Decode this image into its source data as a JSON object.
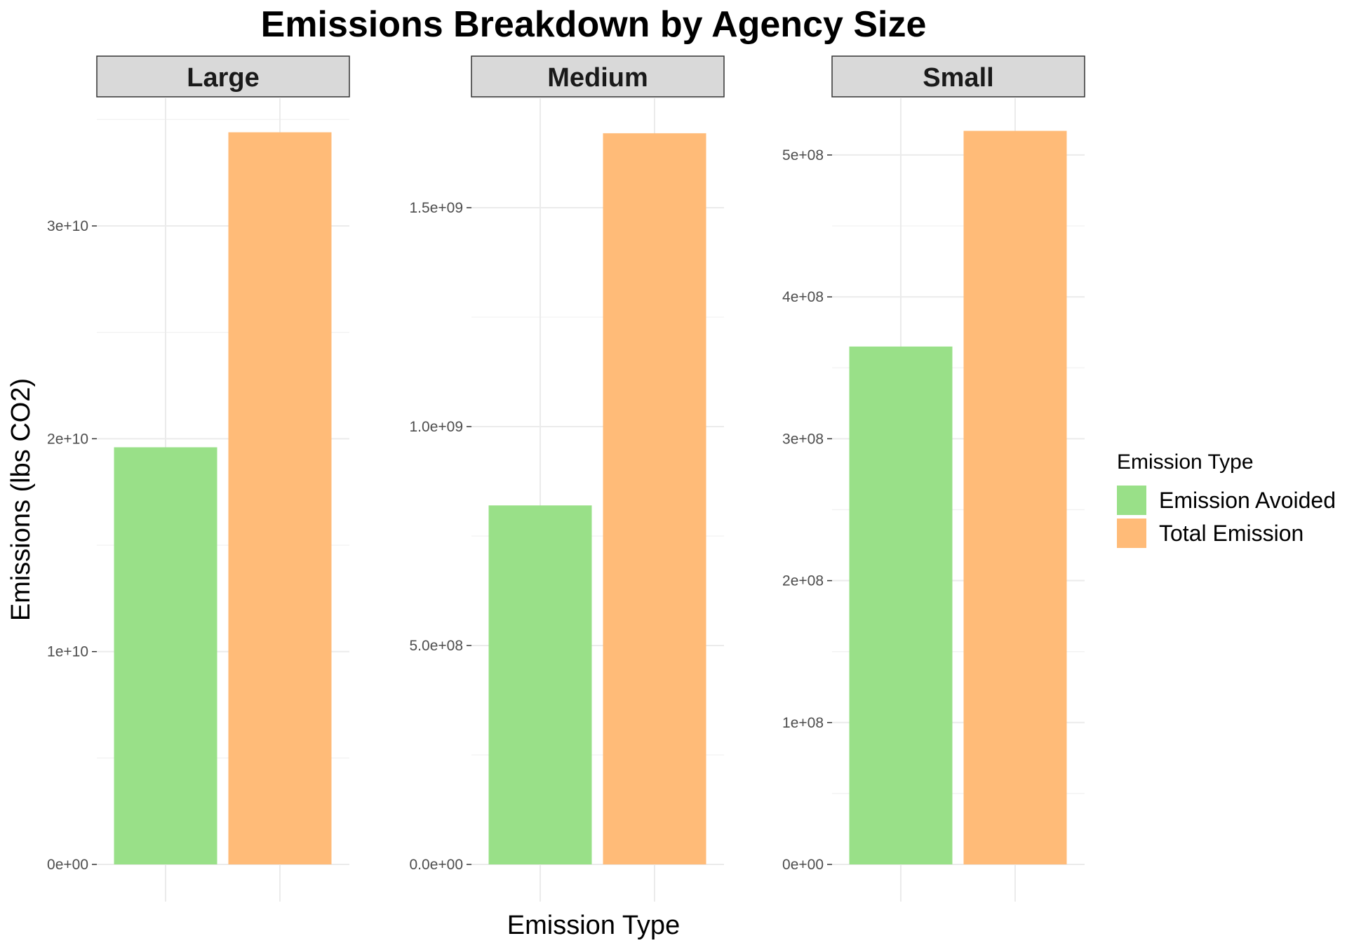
{
  "chart_data": {
    "type": "bar",
    "title": "Emissions Breakdown by Agency Size",
    "xlabel": "Emission Type",
    "ylabel": "Emissions (lbs CO2)",
    "legend": {
      "title": "Emission Type",
      "placement": "right",
      "entries": [
        {
          "name": "Emission Avoided",
          "color": "#99e088"
        },
        {
          "name": "Total Emission",
          "color": "#ffbb78"
        }
      ]
    },
    "categories": [
      "Emission Avoided",
      "Total Emission"
    ],
    "grid": true,
    "facets": [
      {
        "label": "Large",
        "values": [
          19600000000,
          34400000000
        ],
        "ylim": [
          0,
          36000000000
        ],
        "ticks": [
          {
            "value": 0,
            "label": "0e+00"
          },
          {
            "value": 10000000000,
            "label": "1e+10"
          },
          {
            "value": 20000000000,
            "label": "2e+10"
          },
          {
            "value": 30000000000,
            "label": "3e+10"
          }
        ]
      },
      {
        "label": "Medium",
        "values": [
          820000000,
          1670000000
        ],
        "ylim": [
          0,
          1750000000
        ],
        "ticks": [
          {
            "value": 0,
            "label": "0.0e+00"
          },
          {
            "value": 500000000,
            "label": "5.0e+08"
          },
          {
            "value": 1000000000,
            "label": "1.0e+09"
          },
          {
            "value": 1500000000,
            "label": "1.5e+09"
          }
        ]
      },
      {
        "label": "Small",
        "values": [
          365000000,
          517000000
        ],
        "ylim": [
          0,
          540000000
        ],
        "ticks": [
          {
            "value": 0,
            "label": "0e+00"
          },
          {
            "value": 100000000,
            "label": "1e+08"
          },
          {
            "value": 200000000,
            "label": "2e+08"
          },
          {
            "value": 300000000,
            "label": "3e+08"
          },
          {
            "value": 400000000,
            "label": "4e+08"
          },
          {
            "value": 500000000,
            "label": "5e+08"
          }
        ]
      }
    ]
  }
}
